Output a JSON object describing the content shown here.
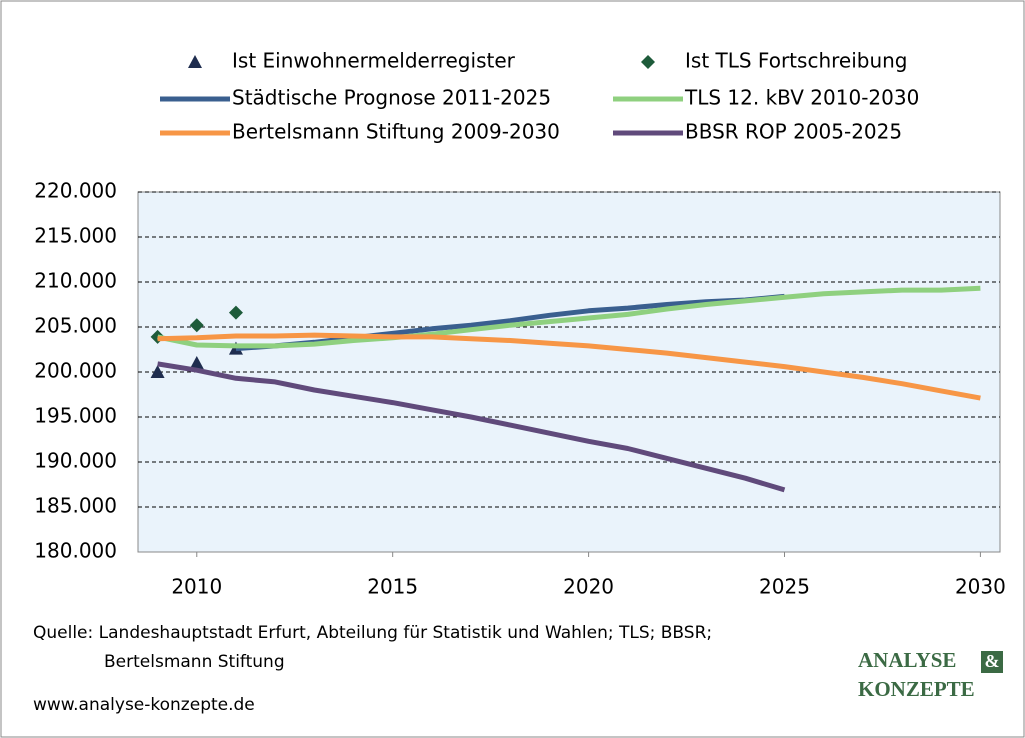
{
  "chart_data": {
    "type": "line",
    "x": [
      2009,
      2010,
      2011,
      2012,
      2013,
      2014,
      2015,
      2016,
      2017,
      2018,
      2019,
      2020,
      2021,
      2022,
      2023,
      2024,
      2025,
      2026,
      2027,
      2028,
      2029,
      2030
    ],
    "series": [
      {
        "name": "Ist Einwohnermelderregister",
        "color": "#1f2d4f",
        "marker": "triangle",
        "values": [
          200000,
          201000,
          202600,
          null,
          null,
          null,
          null,
          null,
          null,
          null,
          null,
          null,
          null,
          null,
          null,
          null,
          null,
          null,
          null,
          null,
          null,
          null
        ]
      },
      {
        "name": "Ist TLS Fortschreibung",
        "color": "#1e5b3a",
        "marker": "diamond",
        "values": [
          203900,
          205200,
          206600,
          null,
          null,
          null,
          null,
          null,
          null,
          null,
          null,
          null,
          null,
          null,
          null,
          null,
          null,
          null,
          null,
          null,
          null,
          null
        ]
      },
      {
        "name": "Städtische Prognose 2011-2025",
        "color": "#3a5f8f",
        "values": [
          null,
          null,
          202600,
          202900,
          203300,
          203800,
          204300,
          204800,
          205200,
          205700,
          206300,
          206800,
          207100,
          207500,
          207800,
          208000,
          208400,
          null,
          null,
          null,
          null,
          null
        ]
      },
      {
        "name": "TLS 12. kBV 2010-2030",
        "color": "#8fd07f",
        "values": [
          203900,
          203000,
          202900,
          202900,
          203100,
          203500,
          203800,
          204200,
          204700,
          205200,
          205600,
          206000,
          206400,
          207000,
          207500,
          207900,
          208300,
          208700,
          208900,
          209100,
          209100,
          209300
        ]
      },
      {
        "name": "Bertelsmann Stiftung 2009-2030",
        "color": "#f79646",
        "values": [
          203700,
          203800,
          204000,
          204000,
          204100,
          204000,
          203900,
          203900,
          203700,
          203500,
          203200,
          202900,
          202500,
          202100,
          201600,
          201100,
          200600,
          200000,
          199400,
          198700,
          197900,
          197100
        ]
      },
      {
        "name": "BBSR ROP 2005-2025",
        "color": "#604a7b",
        "values": [
          200900,
          200200,
          199300,
          198900,
          198000,
          197300,
          196600,
          195800,
          195000,
          194100,
          193200,
          192300,
          191500,
          190400,
          189300,
          188200,
          186900,
          null,
          null,
          null,
          null,
          null
        ]
      }
    ],
    "xlim": [
      2008.5,
      2030.5
    ],
    "xticks": [
      2010,
      2015,
      2020,
      2025,
      2030
    ],
    "ylim": [
      180000,
      220000
    ],
    "yticks": [
      {
        "value": 180000,
        "label": "180.000"
      },
      {
        "value": 185000,
        "label": "185.000"
      },
      {
        "value": 190000,
        "label": "190.000"
      },
      {
        "value": 195000,
        "label": "195.000"
      },
      {
        "value": 200000,
        "label": "200.000"
      },
      {
        "value": 205000,
        "label": "205.000"
      },
      {
        "value": 210000,
        "label": "210.000"
      },
      {
        "value": 215000,
        "label": "215.000"
      },
      {
        "value": 220000,
        "label": "220.000"
      }
    ],
    "grid": true
  },
  "footer": {
    "source": [
      "Quelle: Landeshauptstadt Erfurt, Abteilung für Statistik und Wahlen; TLS; BBSR;",
      "Bertelsmann Stiftung"
    ],
    "website": "www.analyse-konzepte.de",
    "logo": [
      "ANALYSE",
      "&",
      "KONZEPTE"
    ]
  }
}
